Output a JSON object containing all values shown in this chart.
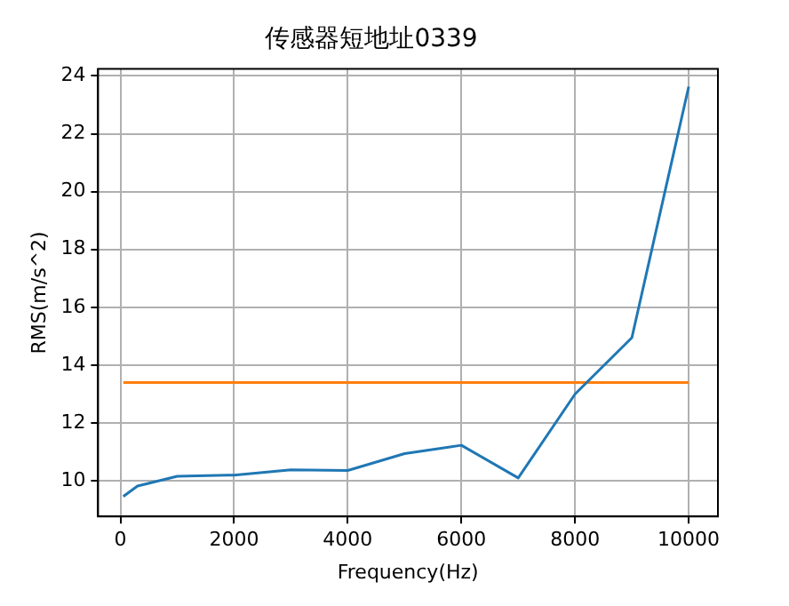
{
  "chart_data": {
    "type": "line",
    "title": "传感器短地址0339",
    "xlabel": "Frequency(Hz)",
    "ylabel": "RMS(m/s^2)",
    "xlim": [
      -393,
      10514
    ],
    "xticks": [
      0,
      2000,
      4000,
      6000,
      8000,
      10000
    ],
    "ylim": [
      8.77,
      24.24
    ],
    "yticks": [
      10,
      12,
      14,
      16,
      18,
      20,
      22,
      24
    ],
    "grid": true,
    "marker": "none",
    "line_style": "solid",
    "series": [
      {
        "color": "#1f77b4",
        "x": [
          50,
          300,
          1000,
          2000,
          3000,
          4000,
          5000,
          6000,
          7000,
          8000,
          9000,
          10000
        ],
        "values": [
          9.46,
          9.82,
          10.16,
          10.2,
          10.38,
          10.36,
          10.94,
          11.23,
          10.1,
          13.0,
          14.95,
          23.63
        ]
      },
      {
        "color": "#ff7f0e",
        "x": [
          50,
          10000
        ],
        "values": [
          13.4,
          13.4
        ]
      }
    ]
  }
}
